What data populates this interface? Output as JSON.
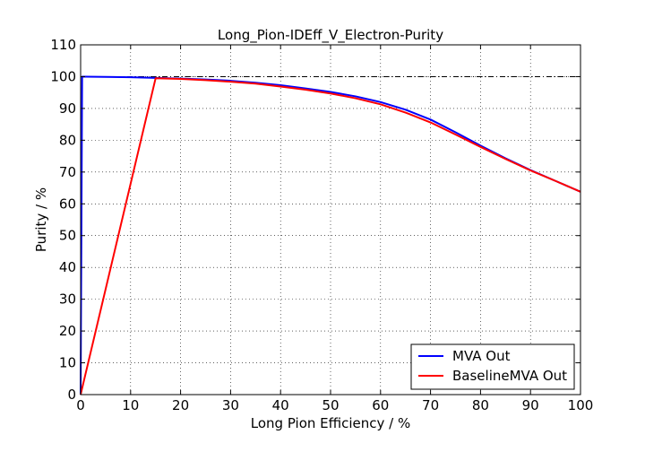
{
  "chart_data": {
    "type": "line",
    "title": "Long_Pion-IDEff_V_Electron-Purity",
    "xlabel": "Long Pion Efficiency / %",
    "ylabel": "Purity / %",
    "xlim": [
      0,
      100
    ],
    "ylim": [
      0,
      110
    ],
    "xticks": [
      "0",
      "10",
      "20",
      "30",
      "40",
      "50",
      "60",
      "70",
      "80",
      "90",
      "100"
    ],
    "yticks": [
      "0",
      "10",
      "20",
      "30",
      "40",
      "50",
      "60",
      "70",
      "80",
      "90",
      "100",
      "110"
    ],
    "grid": true,
    "legend_position": "bottom-right",
    "reference_line": {
      "y": 100
    },
    "series": [
      {
        "name": "MVA Out",
        "color": "#0000ff",
        "x": [
          0,
          0.3,
          1,
          5,
          10,
          15,
          20,
          25,
          30,
          35,
          40,
          45,
          50,
          55,
          60,
          65,
          70,
          75,
          80,
          85,
          90,
          95,
          100
        ],
        "y": [
          0,
          100,
          100,
          99.9,
          99.8,
          99.6,
          99.4,
          99.1,
          98.7,
          98.1,
          97.3,
          96.3,
          95.2,
          93.8,
          92.0,
          89.6,
          86.5,
          82.5,
          78.3,
          74.3,
          70.6,
          67.2,
          63.8
        ]
      },
      {
        "name": "BaselineMVA Out",
        "color": "#ff0000",
        "x": [
          0,
          15,
          20,
          25,
          30,
          35,
          40,
          45,
          50,
          55,
          60,
          65,
          70,
          75,
          80,
          85,
          90,
          95,
          100
        ],
        "y": [
          0,
          99.5,
          99.3,
          98.9,
          98.4,
          97.8,
          96.9,
          95.9,
          94.7,
          93.2,
          91.3,
          88.7,
          85.6,
          81.8,
          77.9,
          74.1,
          70.5,
          67.2,
          63.8
        ]
      }
    ]
  }
}
